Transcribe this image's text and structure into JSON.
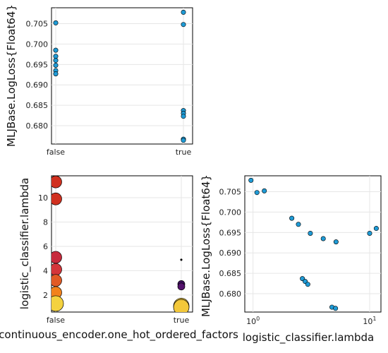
{
  "chart_data": [
    {
      "id": "loss_vs_encoder",
      "type": "scatter",
      "title": "",
      "xlabel": "",
      "ylabel": "MLJBase.LogLoss{Float64}",
      "x_categories": [
        "false",
        "true"
      ],
      "yticks": [
        "0.680",
        "0.685",
        "0.690",
        "0.695",
        "0.700",
        "0.705"
      ],
      "ylim": [
        0.6755,
        0.7089
      ],
      "grid": true,
      "color": "#1f9bd6",
      "series": [
        {
          "points": [
            {
              "x": "false",
              "y": 0.7052
            },
            {
              "x": "false",
              "y": 0.6985
            },
            {
              "x": "false",
              "y": 0.697
            },
            {
              "x": "false",
              "y": 0.696
            },
            {
              "x": "false",
              "y": 0.6948
            },
            {
              "x": "false",
              "y": 0.6935
            },
            {
              "x": "false",
              "y": 0.6927
            },
            {
              "x": "true",
              "y": 0.7078
            },
            {
              "x": "true",
              "y": 0.7048
            },
            {
              "x": "true",
              "y": 0.6837
            },
            {
              "x": "true",
              "y": 0.683
            },
            {
              "x": "true",
              "y": 0.6823
            },
            {
              "x": "true",
              "y": 0.6767
            },
            {
              "x": "true",
              "y": 0.6764
            }
          ]
        }
      ]
    },
    {
      "id": "lambda_vs_encoder",
      "type": "scatter",
      "title": "",
      "xlabel": "continuous_encoder.one_hot_ordered_factors",
      "ylabel": "logistic_classifier.lambda",
      "x_categories": [
        "false",
        "true"
      ],
      "yticks": [
        "2",
        "4",
        "6",
        "8",
        "10"
      ],
      "ylim": [
        0.6,
        11.8
      ],
      "grid": true,
      "points": [
        {
          "x": "false",
          "y": 11.3,
          "color": "#d0301f"
        },
        {
          "x": "false",
          "y": 9.9,
          "color": "#d0301f"
        },
        {
          "x": "false",
          "y": 5.1,
          "color": "#c72a3c"
        },
        {
          "x": "false",
          "y": 4.1,
          "color": "#d4353a"
        },
        {
          "x": "false",
          "y": 3.2,
          "color": "#e15a25"
        },
        {
          "x": "false",
          "y": 2.2,
          "color": "#f2821c"
        },
        {
          "x": "false",
          "y": 1.3,
          "color": "#f4d23f"
        },
        {
          "x": "true",
          "y": 4.9,
          "color": "#000004"
        },
        {
          "x": "true",
          "y": 2.9,
          "color": "#3d0f5e"
        },
        {
          "x": "true",
          "y": 2.7,
          "color": "#55136e"
        },
        {
          "x": "true",
          "y": 1.1,
          "color": "#f6cf3e"
        },
        {
          "x": "true",
          "y": 1.0,
          "color": "#f3c83a"
        }
      ]
    },
    {
      "id": "loss_vs_lambda",
      "type": "scatter",
      "title": "",
      "xlabel": "logistic_classifier.lambda",
      "ylabel": "MLJBase.LogLoss{Float64}",
      "xscale": "log10",
      "xlim": [
        0.85,
        12.5
      ],
      "xticks": [
        {
          "value": 1,
          "base": "10",
          "exp": "0"
        },
        {
          "value": 10,
          "base": "10",
          "exp": "1"
        }
      ],
      "yticks": [
        "0.680",
        "0.685",
        "0.690",
        "0.695",
        "0.700",
        "0.705"
      ],
      "ylim": [
        0.6755,
        0.7089
      ],
      "grid": true,
      "color": "#1f9bd6",
      "series": [
        {
          "points": [
            {
              "x": 0.96,
              "y": 0.7078
            },
            {
              "x": 1.08,
              "y": 0.7048
            },
            {
              "x": 1.25,
              "y": 0.7052
            },
            {
              "x": 2.15,
              "y": 0.6985
            },
            {
              "x": 2.45,
              "y": 0.697
            },
            {
              "x": 2.65,
              "y": 0.6837
            },
            {
              "x": 2.8,
              "y": 0.683
            },
            {
              "x": 2.95,
              "y": 0.6823
            },
            {
              "x": 3.1,
              "y": 0.6948
            },
            {
              "x": 4.0,
              "y": 0.6935
            },
            {
              "x": 4.75,
              "y": 0.6767
            },
            {
              "x": 5.1,
              "y": 0.6764
            },
            {
              "x": 5.15,
              "y": 0.6927
            },
            {
              "x": 10.0,
              "y": 0.6948
            },
            {
              "x": 11.4,
              "y": 0.696
            }
          ]
        }
      ]
    }
  ]
}
